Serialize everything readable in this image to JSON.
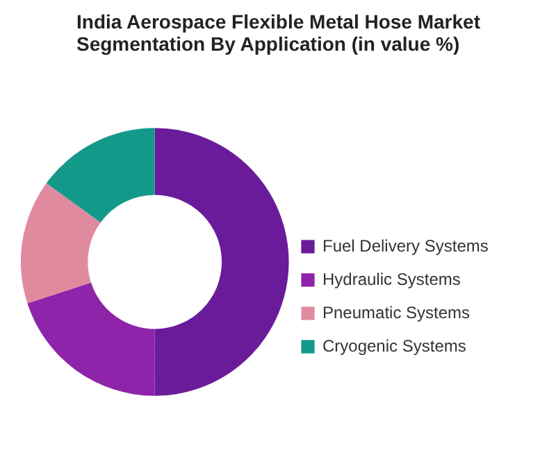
{
  "chart_data": {
    "type": "donut",
    "title": "India Aerospace Flexible Metal Hose Market Segmentation By Application (in value %)",
    "categories": [
      "Fuel Delivery Systems",
      "Hydraulic Systems",
      "Pneumatic Systems",
      "Cryogenic Systems"
    ],
    "values": [
      50,
      20,
      15,
      15
    ],
    "colors": [
      "#6a1b9a",
      "#8e24aa",
      "#e08aa0",
      "#13998a"
    ],
    "legend": "right"
  }
}
